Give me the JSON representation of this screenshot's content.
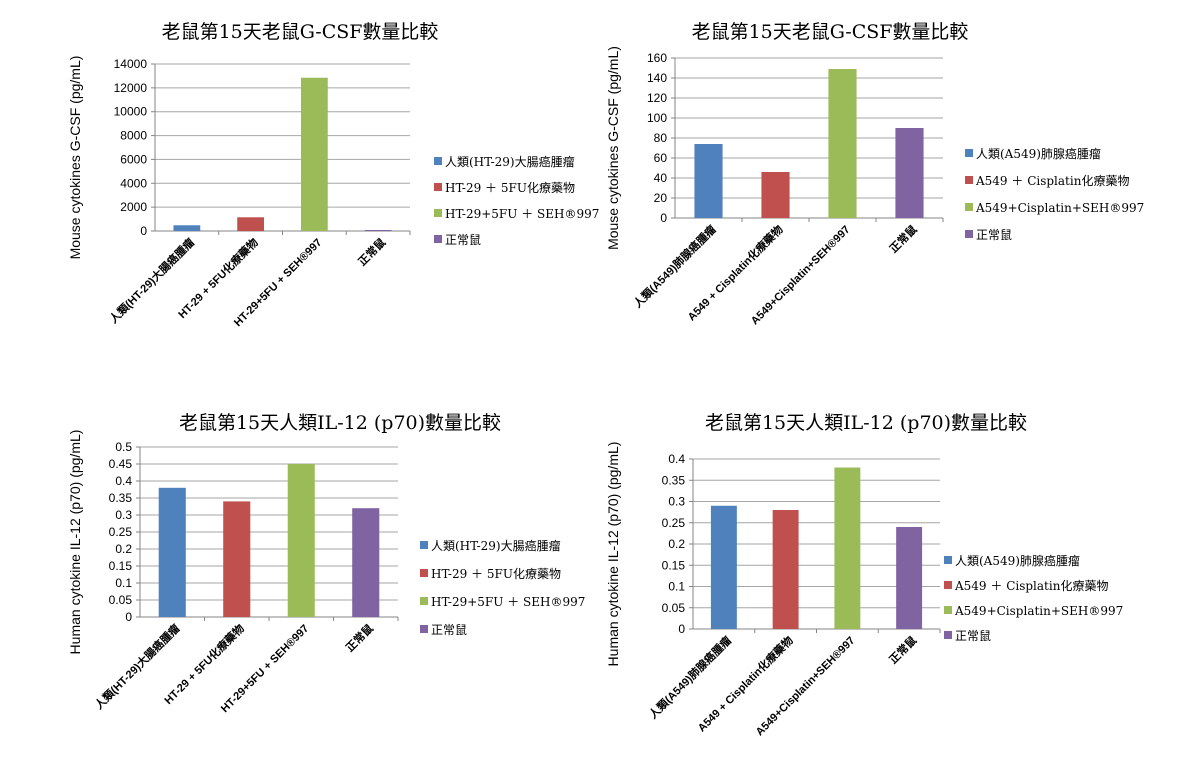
{
  "chart_data": [
    {
      "type": "bar",
      "title": "老鼠第15天老鼠G-CSF數量比較",
      "ylabel": "Mouse cytokines G-CSF (pg/mL)",
      "xlabel": "",
      "ylim": [
        0,
        14000
      ],
      "yticks": [
        0,
        2000,
        4000,
        6000,
        8000,
        10000,
        12000,
        14000
      ],
      "grid": true,
      "legend_position": "right",
      "categories": [
        "人類(HT-29)大腸癌腫瘤",
        "HT-29 + 5FU化療藥物",
        "HT-29+5FU + SEH®997",
        "正常鼠"
      ],
      "values": [
        480,
        1150,
        12850,
        60
      ],
      "colors": [
        "#4f81bd",
        "#c0504d",
        "#9bbb59",
        "#8064a2"
      ],
      "legend": [
        "人類(HT-29)大腸癌腫瘤",
        "HT-29 ＋ 5FU化療藥物",
        "HT-29+5FU ＋ SEH®997",
        "正常鼠"
      ]
    },
    {
      "type": "bar",
      "title": "老鼠第15天老鼠G-CSF數量比較",
      "ylabel": "Mouse cytokines G-CSF (pg/mL)",
      "xlabel": "",
      "ylim": [
        0,
        160
      ],
      "yticks": [
        0,
        20,
        40,
        60,
        80,
        100,
        120,
        140,
        160
      ],
      "grid": true,
      "legend_position": "right",
      "categories": [
        "人類(A549)肺腺癌腫瘤",
        "A549 + Cisplatin化療藥物",
        "A549+Cisplatin+SEH®997",
        "正常鼠"
      ],
      "values": [
        74,
        46,
        149,
        90
      ],
      "colors": [
        "#4f81bd",
        "#c0504d",
        "#9bbb59",
        "#8064a2"
      ],
      "legend": [
        "人類(A549)肺腺癌腫瘤",
        "A549 ＋ Cisplatin化療藥物",
        "A549+Cisplatin+SEH®997",
        "正常鼠"
      ]
    },
    {
      "type": "bar",
      "title": "老鼠第15天人類IL-12 (p70)數量比較",
      "ylabel": "Human cytokine IL-12 (p70) (pg/mL)",
      "xlabel": "",
      "ylim": [
        0,
        0.5
      ],
      "yticks": [
        0,
        0.05,
        0.1,
        0.15,
        0.2,
        0.25,
        0.3,
        0.35,
        0.4,
        0.45,
        0.5
      ],
      "grid": true,
      "legend_position": "right",
      "categories": [
        "人類(HT-29)大腸癌腫瘤",
        "HT-29 + 5FU化療藥物",
        "HT-29+5FU + SEH®997",
        "正常鼠"
      ],
      "values": [
        0.38,
        0.34,
        0.45,
        0.32
      ],
      "colors": [
        "#4f81bd",
        "#c0504d",
        "#9bbb59",
        "#8064a2"
      ],
      "legend": [
        "人類(HT-29)大腸癌腫瘤",
        "HT-29 ＋ 5FU化療藥物",
        "HT-29+5FU ＋ SEH®997",
        "正常鼠"
      ]
    },
    {
      "type": "bar",
      "title": "老鼠第15天人類IL-12 (p70)數量比較",
      "ylabel": "Human cytokine IL-12 (p70) (pg/mL)",
      "xlabel": "",
      "ylim": [
        0,
        0.4
      ],
      "yticks": [
        0,
        0.05,
        0.1,
        0.15,
        0.2,
        0.25,
        0.3,
        0.35,
        0.4
      ],
      "grid": true,
      "legend_position": "right",
      "categories": [
        "人類(A549)肺腺癌腫瘤",
        "A549 + Cisplatin化療藥物",
        "A549+Cisplatin+SEH®997",
        "正常鼠"
      ],
      "values": [
        0.29,
        0.28,
        0.38,
        0.24
      ],
      "colors": [
        "#4f81bd",
        "#c0504d",
        "#9bbb59",
        "#8064a2"
      ],
      "legend": [
        "人類(A549)肺腺癌腫瘤",
        "A549 ＋ Cisplatin化療藥物",
        "A549+Cisplatin+SEH®997",
        "正常鼠"
      ]
    }
  ]
}
